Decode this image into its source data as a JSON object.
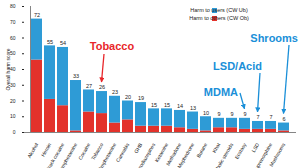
{
  "chart_data": {
    "type": "bar",
    "stacked": true,
    "y_label": "Overall harm score",
    "categories": [
      "Alcohol",
      "Heroin",
      "Crack cocaine",
      "Methamphetamine",
      "Cocaine",
      "Tobacco",
      "Amphetamine",
      "Cannabis",
      "GHB",
      "Benzodiazepines",
      "Ketamine",
      "Methadone",
      "Mephedrone",
      "Butane",
      "Khat",
      "Anabolic steroids",
      "Ecstasy",
      "LSD",
      "Buprenorphine",
      "Mushrooms"
    ],
    "series": [
      {
        "name": "Harm to users (CW Ub)",
        "color": "#2e9bd6",
        "values": [
          26,
          34,
          37,
          32,
          14,
          14,
          17,
          12,
          15,
          11,
          11,
          11,
          11,
          9,
          6,
          6,
          7,
          5,
          5,
          5
        ]
      },
      {
        "name": "Harm to others (CW Ob)",
        "color": "#e3322b",
        "values": [
          46,
          21,
          17,
          1,
          13,
          12,
          6,
          8,
          4,
          4,
          4,
          3,
          2,
          1,
          3,
          3,
          2,
          2,
          2,
          1
        ]
      }
    ],
    "totals": [
      72,
      55,
      54,
      33,
      27,
      26,
      23,
      20,
      19,
      15,
      15,
      14,
      13,
      10,
      9,
      9,
      9,
      7,
      7,
      6
    ],
    "ylim": [
      0,
      80
    ],
    "yticks": [
      0,
      10,
      20,
      30,
      40,
      50,
      60,
      70,
      80
    ],
    "grid": false,
    "legend": "top-right",
    "annotations": [
      {
        "text": "Tobacco",
        "category": "Tobacco",
        "color": "#e8262a"
      },
      {
        "text": "MDMA",
        "category": "Ecstasy",
        "color": "#1a8fd8"
      },
      {
        "text": "LSD/Acid",
        "category": "LSD",
        "color": "#1a8fd8"
      },
      {
        "text": "Shrooms",
        "category": "Mushrooms",
        "color": "#1a8fd8"
      }
    ]
  }
}
